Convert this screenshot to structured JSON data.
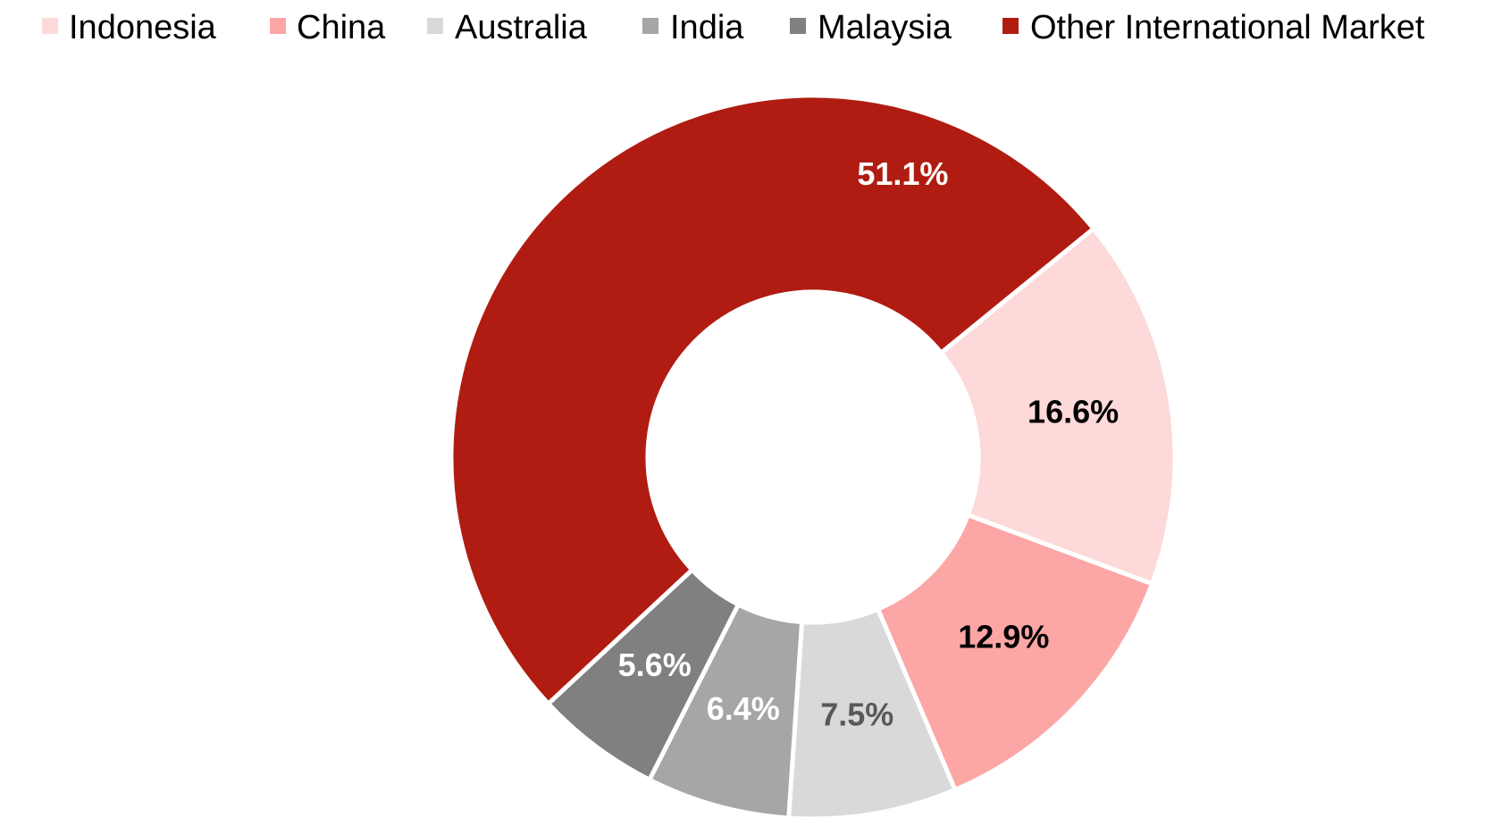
{
  "chart_data": {
    "type": "pie",
    "variant": "donut",
    "title": "",
    "legend_position": "top",
    "series": [
      {
        "name": "Indonesia",
        "value": 16.6,
        "label": "16.6%",
        "color": "#FDD9D9",
        "label_color": "#000000"
      },
      {
        "name": "China",
        "value": 12.9,
        "label": "12.9%",
        "color": "#FCA6A6",
        "label_color": "#000000"
      },
      {
        "name": "Australia",
        "value": 7.5,
        "label": "7.5%",
        "color": "#D9D9D9",
        "label_color": "#595959"
      },
      {
        "name": "India",
        "value": 6.4,
        "label": "6.4%",
        "color": "#A6A6A6",
        "label_color": "#FFFFFF"
      },
      {
        "name": "Malaysia",
        "value": 5.6,
        "label": "5.6%",
        "color": "#808080",
        "label_color": "#FFFFFF"
      },
      {
        "name": "Other International Market",
        "value": 51.1,
        "label": "51.1%",
        "color": "#B01C12",
        "label_color": "#FFFFFF"
      }
    ]
  }
}
